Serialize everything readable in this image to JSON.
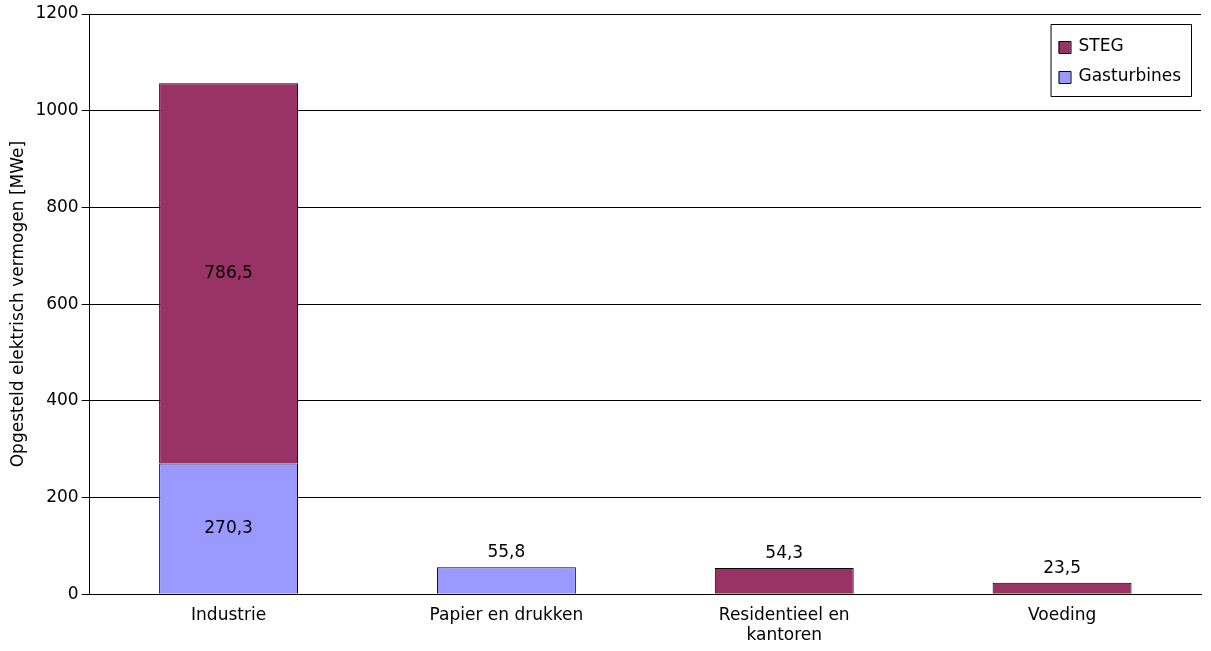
{
  "chart_data": {
    "type": "bar",
    "ylabel": "Opgesteld elektrisch vermogen [MWe]",
    "categories": [
      "Industrie",
      "Papier en drukken",
      "Residentieel en kantoren",
      "Voeding"
    ],
    "stacked": true,
    "series": [
      {
        "name": "Gasturbines",
        "color": "#9999ff",
        "values": [
          270.3,
          55.8,
          null,
          null
        ],
        "value_labels": [
          "270,3",
          "55,8",
          null,
          null
        ]
      },
      {
        "name": "STEG",
        "color": "#993366",
        "values": [
          786.5,
          null,
          54.3,
          23.5
        ],
        "value_labels": [
          "786,5",
          null,
          "54,3",
          "23,5"
        ]
      }
    ],
    "ylim": [
      0,
      1200
    ],
    "yticks": [
      0,
      200,
      400,
      600,
      800,
      1000,
      1200
    ],
    "grid": "y",
    "legend": "top right"
  }
}
